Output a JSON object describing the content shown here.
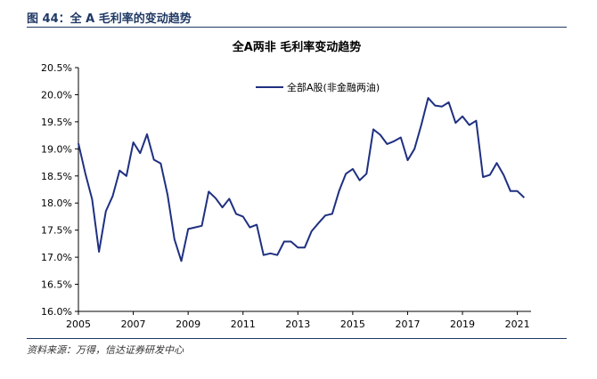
{
  "figure": {
    "caption": "图 44：全 A 毛利率的变动趋势",
    "source": "资料来源：万得，信达证券研发中心"
  },
  "colors": {
    "header_rule": "#1f3864",
    "line": "#1f3080"
  },
  "chart_data": {
    "type": "line",
    "title": "全A两非 毛利率变动趋势",
    "xlabel": "",
    "ylabel": "",
    "ylim": [
      16.0,
      20.5
    ],
    "xlim": [
      2005,
      2021.5
    ],
    "y_ticks": [
      "16.0%",
      "16.5%",
      "17.0%",
      "17.5%",
      "18.0%",
      "18.5%",
      "19.0%",
      "19.5%",
      "20.0%",
      "20.5%"
    ],
    "y_tick_values": [
      16.0,
      16.5,
      17.0,
      17.5,
      18.0,
      18.5,
      19.0,
      19.5,
      20.0,
      20.5
    ],
    "x_ticks": [
      "2005",
      "2007",
      "2009",
      "2011",
      "2013",
      "2015",
      "2017",
      "2019",
      "2021"
    ],
    "x_tick_values": [
      2005,
      2007,
      2009,
      2011,
      2013,
      2015,
      2017,
      2019,
      2021
    ],
    "legend_position": "top-center",
    "grid": false,
    "series": [
      {
        "name": "全部A股(非金融两油)",
        "x": [
          2005.0,
          2005.25,
          2005.5,
          2005.75,
          2006.0,
          2006.25,
          2006.5,
          2006.75,
          2007.0,
          2007.25,
          2007.5,
          2007.75,
          2008.0,
          2008.25,
          2008.5,
          2008.75,
          2009.0,
          2009.25,
          2009.5,
          2009.75,
          2010.0,
          2010.25,
          2010.5,
          2010.75,
          2011.0,
          2011.25,
          2011.5,
          2011.75,
          2012.0,
          2012.25,
          2012.5,
          2012.75,
          2013.0,
          2013.25,
          2013.5,
          2013.75,
          2014.0,
          2014.25,
          2014.5,
          2014.75,
          2015.0,
          2015.25,
          2015.5,
          2015.75,
          2016.0,
          2016.25,
          2016.5,
          2016.75,
          2017.0,
          2017.25,
          2017.5,
          2017.75,
          2018.0,
          2018.25,
          2018.5,
          2018.75,
          2019.0,
          2019.25,
          2019.5,
          2019.75,
          2020.0,
          2020.25,
          2020.5,
          2020.75,
          2021.0,
          2021.25
        ],
        "values": [
          19.1,
          18.55,
          18.07,
          17.1,
          17.85,
          18.13,
          18.6,
          18.5,
          19.12,
          18.92,
          19.27,
          18.8,
          18.73,
          18.15,
          17.33,
          16.93,
          17.52,
          17.55,
          17.58,
          18.21,
          18.09,
          17.92,
          18.08,
          17.8,
          17.75,
          17.55,
          17.6,
          17.04,
          17.07,
          17.04,
          17.29,
          17.29,
          17.18,
          17.18,
          17.48,
          17.63,
          17.77,
          17.8,
          18.22,
          18.54,
          18.63,
          18.42,
          18.54,
          19.36,
          19.26,
          19.09,
          19.14,
          19.21,
          18.79,
          19.0,
          19.44,
          19.94,
          19.8,
          19.78,
          19.86,
          19.48,
          19.6,
          19.44,
          19.52,
          18.48,
          18.52,
          18.74,
          18.52,
          18.22,
          18.22,
          18.1
        ]
      }
    ]
  }
}
